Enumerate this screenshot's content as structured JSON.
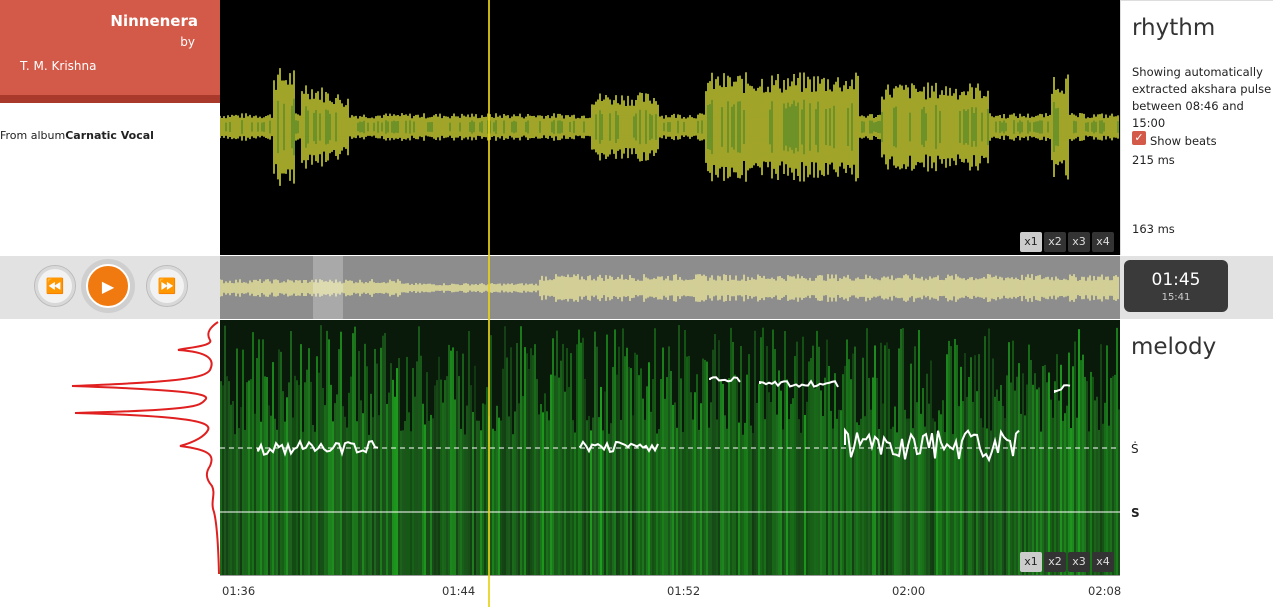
{
  "track": {
    "title": "Ninnenera",
    "by": "by",
    "artist": "T. M. Krishna",
    "album_prefix": "From album",
    "album": "Carnatic Vocal"
  },
  "rhythm": {
    "title": "rhythm",
    "description": "Showing automatically extracted akshara pulse between 08:46 and 15:00",
    "show_beats_label": "Show beats",
    "show_beats_checked": true,
    "value_high": "215 ms",
    "value_low": "163 ms"
  },
  "zoom": [
    "x1",
    "x2",
    "x3",
    "x4"
  ],
  "player": {
    "current_time": "01:45",
    "total_time": "15:41"
  },
  "melody": {
    "title": "melody",
    "svara_upper": "Ṡ",
    "svara_lower": "S"
  },
  "axis": {
    "ticks": [
      "01:36",
      "01:44",
      "01:52",
      "02:00",
      "02:08"
    ]
  },
  "colors": {
    "accent": "#d35a48",
    "play": "#f07a10",
    "wave": "#e5ea3a",
    "melody_bg": "#0f3a0f",
    "pitch": "#ffffff",
    "histogram": "#e02020"
  }
}
